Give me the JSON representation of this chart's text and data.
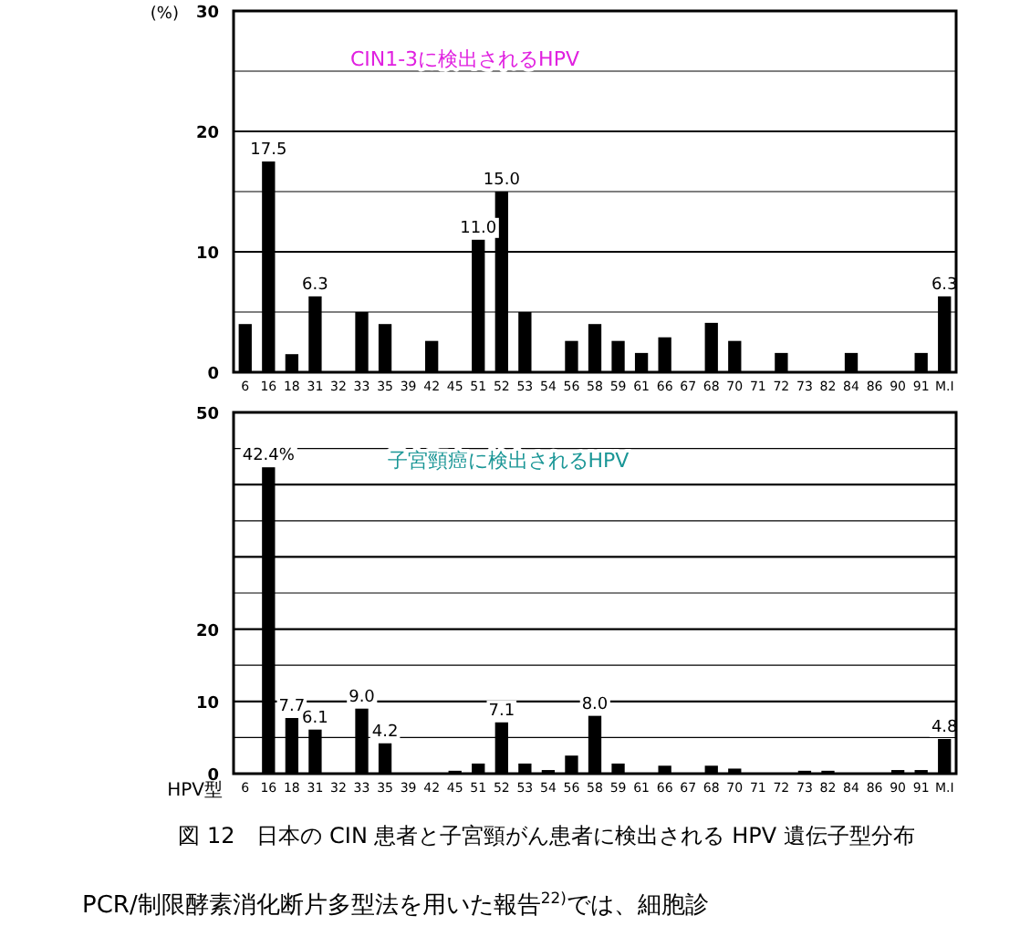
{
  "chart_data": [
    {
      "type": "bar",
      "title": "CIN1-3に検出されるHPV",
      "ylabel": "(%)",
      "color": "#000000",
      "grid": "y",
      "categories": [
        "6",
        "16",
        "18",
        "31",
        "32",
        "33",
        "35",
        "39",
        "42",
        "45",
        "51",
        "52",
        "53",
        "54",
        "56",
        "58",
        "59",
        "61",
        "66",
        "67",
        "68",
        "70",
        "71",
        "72",
        "73",
        "82",
        "84",
        "86",
        "90",
        "91",
        "M.I"
      ],
      "values": [
        4.0,
        17.5,
        1.5,
        6.3,
        0,
        5.0,
        4.0,
        0,
        2.6,
        0,
        11.0,
        15.0,
        5.0,
        0,
        2.6,
        4.0,
        2.6,
        1.6,
        2.9,
        0,
        4.1,
        2.6,
        0,
        1.6,
        0,
        0,
        1.6,
        0,
        0,
        1.6,
        6.3
      ],
      "value_labels": [
        null,
        "17.5",
        null,
        "6.3",
        null,
        null,
        null,
        null,
        null,
        null,
        "11.0",
        "15.0",
        null,
        null,
        null,
        null,
        null,
        null,
        null,
        null,
        null,
        null,
        null,
        null,
        null,
        null,
        null,
        null,
        null,
        null,
        "6.3"
      ],
      "ylim": [
        0,
        30
      ],
      "yticks": [
        0,
        {
          "value": 5,
          "label": null
        },
        10,
        {
          "value": 15,
          "label": null
        },
        20,
        {
          "value": 25,
          "label": null
        },
        30
      ]
    },
    {
      "type": "bar",
      "title": "子宮頸癌に検出されるHPV",
      "xlabel": "HPV型",
      "color": "#000000",
      "grid": "y",
      "categories": [
        "6",
        "16",
        "18",
        "31",
        "32",
        "33",
        "35",
        "39",
        "42",
        "45",
        "51",
        "52",
        "53",
        "54",
        "56",
        "58",
        "59",
        "61",
        "66",
        "67",
        "68",
        "70",
        "71",
        "72",
        "73",
        "82",
        "84",
        "86",
        "90",
        "91",
        "M.I"
      ],
      "values": [
        0,
        42.4,
        7.7,
        6.1,
        0,
        9.0,
        4.2,
        0,
        0,
        0.4,
        1.4,
        7.1,
        1.4,
        0.5,
        2.5,
        8.0,
        1.4,
        0,
        1.1,
        0,
        1.1,
        0.7,
        0,
        0,
        0.4,
        0.4,
        0,
        0,
        0.5,
        0.5,
        4.8
      ],
      "value_labels": [
        null,
        "42.4%",
        "7.7",
        "6.1",
        null,
        "9.0",
        "4.2",
        null,
        null,
        null,
        null,
        "7.1",
        null,
        null,
        null,
        "8.0",
        null,
        null,
        null,
        null,
        null,
        null,
        null,
        null,
        null,
        null,
        null,
        null,
        null,
        null,
        "4.8"
      ],
      "ylim": [
        0,
        50
      ],
      "yticks": [
        0,
        {
          "value": 5,
          "label": null
        },
        10,
        {
          "value": 15,
          "label": null
        },
        20,
        {
          "value": 25,
          "label": null
        },
        {
          "value": 30,
          "label": null
        },
        {
          "value": 35,
          "label": null
        },
        {
          "value": 40,
          "label": null
        },
        {
          "value": 45,
          "label": null
        },
        50
      ],
      "annotations": [
        "図 12　日本の CIN 患者と子宮頸がん患者に検出される HPV 遺伝子型分布",
        "PCR/制限酵素消化断片多型法を用いた報告$^{22)}$では、細胞診"
      ]
    }
  ]
}
